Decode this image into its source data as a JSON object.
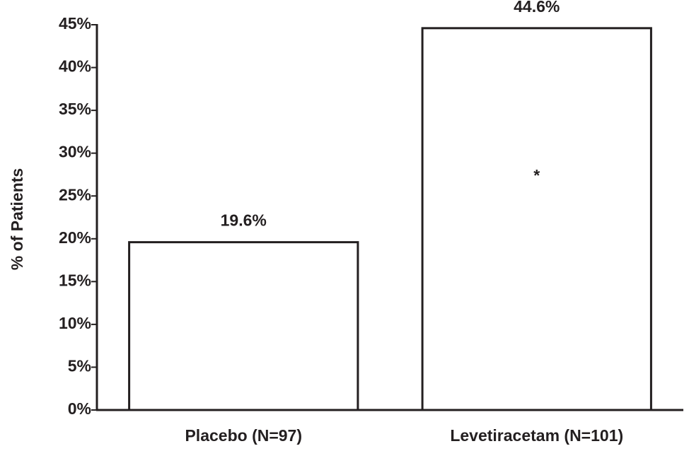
{
  "chart_data": {
    "type": "bar",
    "y_label": "% of Patients",
    "categories": [
      "Placebo (N=97)",
      "Levetiracetam (N=101)"
    ],
    "values": [
      19.6,
      44.6
    ],
    "value_labels": [
      "19.6%",
      "44.6%"
    ],
    "color": "#ffffff",
    "annotations": [
      "*"
    ],
    "ylim": [
      0,
      45
    ],
    "yticks": [
      {
        "value": 0,
        "label": "0%"
      },
      {
        "value": 5,
        "label": "5%"
      },
      {
        "value": 10,
        "label": "10%"
      },
      {
        "value": 15,
        "label": "15%"
      },
      {
        "value": 20,
        "label": "20%"
      },
      {
        "value": 25,
        "label": "25%"
      },
      {
        "value": 30,
        "label": "30%"
      },
      {
        "value": 35,
        "label": "35%"
      },
      {
        "value": 40,
        "label": "40%"
      },
      {
        "value": 45,
        "label": "45%"
      }
    ],
    "grid": false
  }
}
